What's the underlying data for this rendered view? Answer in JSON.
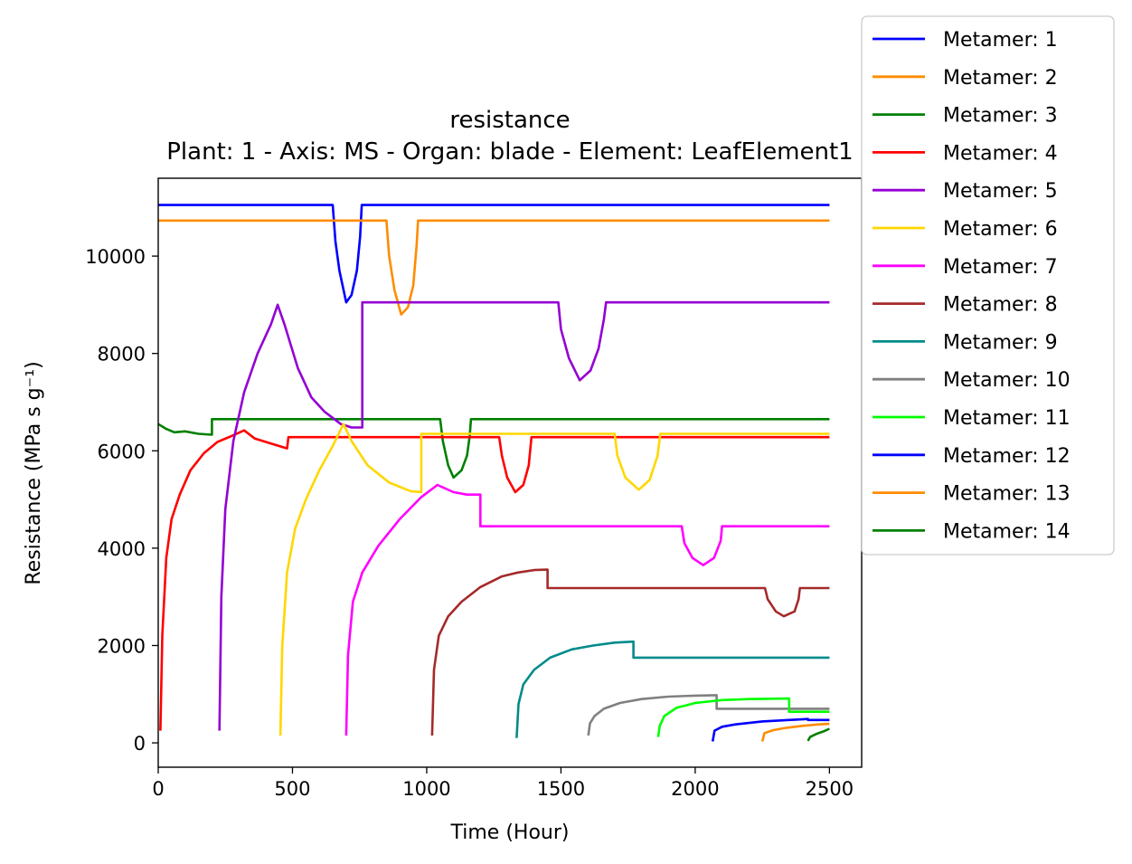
{
  "chart_data": {
    "type": "line",
    "title": "resistance",
    "subtitle": "Plant: 1 - Axis: MS - Organ: blade - Element: LeafElement1",
    "xlabel": "Time (Hour)",
    "ylabel": "Resistance (MPa s g⁻¹)",
    "xlim": [
      0,
      2620
    ],
    "ylim": [
      -500,
      11600
    ],
    "xticks": [
      0,
      500,
      1000,
      1500,
      2000,
      2500
    ],
    "yticks": [
      0,
      2000,
      4000,
      6000,
      8000,
      10000
    ],
    "grid": false,
    "legend_position": "right, outside",
    "series": [
      {
        "name": "Metamer: 1",
        "color": "#0000ff",
        "points": [
          [
            0,
            11050
          ],
          [
            650,
            11050
          ],
          [
            660,
            10300
          ],
          [
            675,
            9700
          ],
          [
            700,
            9050
          ],
          [
            720,
            9200
          ],
          [
            740,
            9700
          ],
          [
            752,
            10400
          ],
          [
            758,
            11050
          ],
          [
            2500,
            11050
          ]
        ]
      },
      {
        "name": "Metamer: 2",
        "color": "#ff8c00",
        "points": [
          [
            0,
            10730
          ],
          [
            850,
            10730
          ],
          [
            860,
            10000
          ],
          [
            880,
            9300
          ],
          [
            905,
            8800
          ],
          [
            930,
            8950
          ],
          [
            950,
            9400
          ],
          [
            962,
            10200
          ],
          [
            968,
            10730
          ],
          [
            2500,
            10730
          ]
        ]
      },
      {
        "name": "Metamer: 3",
        "color": "#008000",
        "points": [
          [
            0,
            6550
          ],
          [
            30,
            6450
          ],
          [
            60,
            6380
          ],
          [
            100,
            6400
          ],
          [
            150,
            6350
          ],
          [
            200,
            6330
          ],
          [
            200,
            6650
          ],
          [
            1050,
            6650
          ],
          [
            1060,
            6200
          ],
          [
            1080,
            5700
          ],
          [
            1100,
            5450
          ],
          [
            1130,
            5600
          ],
          [
            1150,
            5900
          ],
          [
            1160,
            6300
          ],
          [
            1165,
            6650
          ],
          [
            2500,
            6650
          ]
        ]
      },
      {
        "name": "Metamer: 4",
        "color": "#ff0000",
        "points": [
          [
            8,
            250
          ],
          [
            15,
            2200
          ],
          [
            30,
            3800
          ],
          [
            50,
            4600
          ],
          [
            80,
            5100
          ],
          [
            120,
            5600
          ],
          [
            170,
            5950
          ],
          [
            220,
            6180
          ],
          [
            280,
            6320
          ],
          [
            320,
            6420
          ],
          [
            360,
            6250
          ],
          [
            420,
            6150
          ],
          [
            480,
            6050
          ],
          [
            485,
            6280
          ],
          [
            1270,
            6280
          ],
          [
            1280,
            5900
          ],
          [
            1300,
            5450
          ],
          [
            1330,
            5150
          ],
          [
            1360,
            5300
          ],
          [
            1380,
            5700
          ],
          [
            1390,
            6280
          ],
          [
            2500,
            6280
          ]
        ]
      },
      {
        "name": "Metamer: 5",
        "color": "#9400d3",
        "points": [
          [
            228,
            250
          ],
          [
            235,
            3000
          ],
          [
            250,
            4800
          ],
          [
            280,
            6200
          ],
          [
            320,
            7200
          ],
          [
            370,
            8000
          ],
          [
            420,
            8600
          ],
          [
            445,
            9000
          ],
          [
            470,
            8600
          ],
          [
            520,
            7700
          ],
          [
            570,
            7100
          ],
          [
            620,
            6800
          ],
          [
            680,
            6550
          ],
          [
            720,
            6480
          ],
          [
            760,
            6480
          ],
          [
            760,
            9050
          ],
          [
            1490,
            9050
          ],
          [
            1500,
            8500
          ],
          [
            1530,
            7900
          ],
          [
            1570,
            7450
          ],
          [
            1610,
            7650
          ],
          [
            1640,
            8100
          ],
          [
            1660,
            8700
          ],
          [
            1668,
            9050
          ],
          [
            2500,
            9050
          ]
        ]
      },
      {
        "name": "Metamer: 6",
        "color": "#ffd700",
        "points": [
          [
            455,
            150
          ],
          [
            462,
            2000
          ],
          [
            480,
            3500
          ],
          [
            510,
            4400
          ],
          [
            550,
            5000
          ],
          [
            600,
            5600
          ],
          [
            650,
            6100
          ],
          [
            690,
            6550
          ],
          [
            720,
            6200
          ],
          [
            780,
            5700
          ],
          [
            860,
            5350
          ],
          [
            940,
            5170
          ],
          [
            980,
            5150
          ],
          [
            980,
            6350
          ],
          [
            1700,
            6350
          ],
          [
            1710,
            5900
          ],
          [
            1740,
            5450
          ],
          [
            1790,
            5200
          ],
          [
            1830,
            5400
          ],
          [
            1860,
            5900
          ],
          [
            1870,
            6350
          ],
          [
            2500,
            6350
          ]
        ]
      },
      {
        "name": "Metamer: 7",
        "color": "#ff00ff",
        "points": [
          [
            700,
            150
          ],
          [
            707,
            1800
          ],
          [
            725,
            2900
          ],
          [
            760,
            3500
          ],
          [
            820,
            4050
          ],
          [
            900,
            4600
          ],
          [
            980,
            5050
          ],
          [
            1040,
            5300
          ],
          [
            1100,
            5150
          ],
          [
            1150,
            5100
          ],
          [
            1200,
            5100
          ],
          [
            1200,
            4450
          ],
          [
            1950,
            4450
          ],
          [
            1960,
            4100
          ],
          [
            1990,
            3800
          ],
          [
            2030,
            3650
          ],
          [
            2070,
            3800
          ],
          [
            2095,
            4150
          ],
          [
            2100,
            4450
          ],
          [
            2500,
            4450
          ]
        ]
      },
      {
        "name": "Metamer: 8",
        "color": "#a52a2a",
        "points": [
          [
            1020,
            150
          ],
          [
            1027,
            1500
          ],
          [
            1045,
            2200
          ],
          [
            1080,
            2600
          ],
          [
            1130,
            2900
          ],
          [
            1200,
            3200
          ],
          [
            1280,
            3420
          ],
          [
            1340,
            3500
          ],
          [
            1400,
            3550
          ],
          [
            1450,
            3560
          ],
          [
            1450,
            3180
          ],
          [
            2260,
            3180
          ],
          [
            2270,
            2950
          ],
          [
            2300,
            2700
          ],
          [
            2330,
            2600
          ],
          [
            2370,
            2700
          ],
          [
            2385,
            2950
          ],
          [
            2390,
            3180
          ],
          [
            2500,
            3180
          ]
        ]
      },
      {
        "name": "Metamer: 9",
        "color": "#008b8b",
        "points": [
          [
            1335,
            100
          ],
          [
            1342,
            800
          ],
          [
            1360,
            1200
          ],
          [
            1400,
            1500
          ],
          [
            1460,
            1750
          ],
          [
            1540,
            1920
          ],
          [
            1620,
            2000
          ],
          [
            1700,
            2060
          ],
          [
            1770,
            2080
          ],
          [
            1770,
            1750
          ],
          [
            2500,
            1750
          ]
        ]
      },
      {
        "name": "Metamer: 10",
        "color": "#808080",
        "points": [
          [
            1602,
            150
          ],
          [
            1608,
            400
          ],
          [
            1625,
            550
          ],
          [
            1660,
            700
          ],
          [
            1720,
            820
          ],
          [
            1800,
            900
          ],
          [
            1900,
            950
          ],
          [
            2000,
            970
          ],
          [
            2080,
            980
          ],
          [
            2080,
            700
          ],
          [
            2500,
            700
          ]
        ]
      },
      {
        "name": "Metamer: 11",
        "color": "#00ff00",
        "points": [
          [
            1862,
            120
          ],
          [
            1868,
            350
          ],
          [
            1885,
            550
          ],
          [
            1930,
            720
          ],
          [
            2000,
            820
          ],
          [
            2100,
            880
          ],
          [
            2200,
            900
          ],
          [
            2350,
            910
          ],
          [
            2350,
            640
          ],
          [
            2500,
            640
          ]
        ]
      },
      {
        "name": "Metamer: 12",
        "color": "#0000ff",
        "points": [
          [
            2065,
            30
          ],
          [
            2072,
            250
          ],
          [
            2100,
            330
          ],
          [
            2150,
            380
          ],
          [
            2250,
            440
          ],
          [
            2350,
            470
          ],
          [
            2420,
            490
          ],
          [
            2420,
            470
          ],
          [
            2500,
            470
          ]
        ]
      },
      {
        "name": "Metamer: 13",
        "color": "#ff8c00",
        "points": [
          [
            2250,
            30
          ],
          [
            2258,
            200
          ],
          [
            2290,
            260
          ],
          [
            2340,
            310
          ],
          [
            2400,
            350
          ],
          [
            2460,
            380
          ],
          [
            2500,
            390
          ]
        ]
      },
      {
        "name": "Metamer: 14",
        "color": "#008000",
        "points": [
          [
            2420,
            40
          ],
          [
            2428,
            120
          ],
          [
            2450,
            180
          ],
          [
            2480,
            240
          ],
          [
            2500,
            290
          ]
        ]
      }
    ]
  }
}
